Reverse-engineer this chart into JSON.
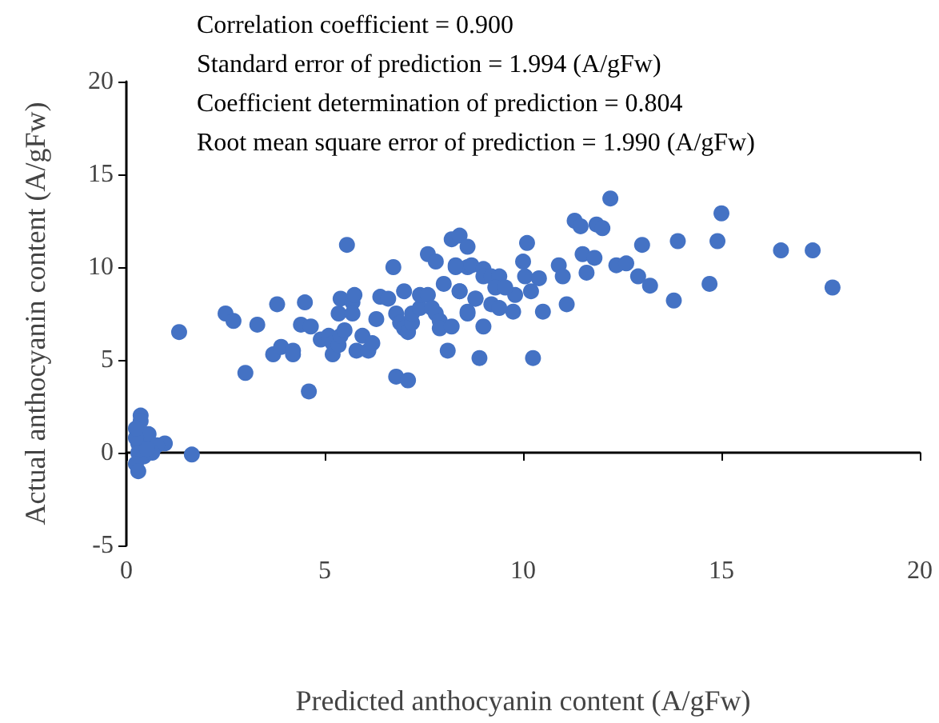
{
  "chart_data": {
    "type": "scatter",
    "xlabel": "Predicted anthocyanin content (A/gFw)",
    "ylabel": "Actual anthocyanin content (A/gFw)",
    "annotations": [
      "Correlation coefficient = 0.900",
      "Standard error of prediction = 1.994 (A/gFw)",
      "Coefficient determination of prediction = 0.804",
      "Root mean square error of prediction = 1.990 (A/gFw)"
    ],
    "xlim": [
      0,
      20
    ],
    "xticks": [
      0,
      5,
      10,
      15,
      20
    ],
    "ylim": [
      -5,
      20
    ],
    "yticks": [
      -5,
      0,
      5,
      10,
      15,
      20
    ],
    "marker": "circle",
    "series": [
      {
        "color": "#4472c4",
        "x": [
          5.56,
          6.73,
          7.6,
          7.8,
          8.2,
          8.4,
          8.6,
          8.3,
          8.6,
          1.33,
          2.5,
          2.7,
          3.3,
          3.8,
          4.5,
          3.0,
          4.6,
          3.7,
          3.9,
          4.2,
          4.2,
          4.4,
          4.65,
          4.9,
          5.1,
          5.2,
          5.2,
          5.35,
          5.4,
          5.5,
          5.35,
          5.4,
          5.7,
          5.75,
          5.7,
          5.95,
          5.8,
          6.1,
          6.2,
          6.3,
          6.4,
          6.6,
          6.8,
          7.0,
          6.9,
          7.0,
          7.1,
          7.2,
          7.2,
          7.4,
          7.4,
          7.6,
          7.7,
          7.8,
          7.9,
          7.9,
          8.2,
          8.1,
          8.0,
          8.4,
          8.6,
          6.8,
          7.1,
          8.8,
          12.2,
          15.0,
          11.3,
          11.45,
          11.85,
          12.0,
          10.1,
          13.0,
          13.9,
          14.9,
          16.5,
          17.3,
          17.8,
          14.7,
          13.8,
          13.2,
          12.9,
          12.35,
          12.6,
          11.5,
          11.8,
          11.6,
          10.9,
          11.0,
          10.0,
          10.05,
          10.4,
          10.2,
          9.8,
          9.75,
          10.5,
          11.1,
          10.25,
          8.9,
          9.0,
          8.6,
          8.8,
          8.3,
          8.7,
          9.0,
          9.0,
          9.2,
          9.4,
          9.3,
          9.55,
          8.4,
          9.2,
          9.4,
          0.36,
          0.36,
          0.56,
          0.97,
          0.77,
          1.65,
          0.3,
          0.3,
          0.44,
          0.65,
          0.24,
          0.3,
          0.24,
          0.52,
          0.24
        ],
        "values": [
          11.2,
          10.0,
          10.7,
          10.3,
          11.5,
          11.7,
          11.1,
          10.0,
          10.0,
          6.5,
          7.5,
          7.1,
          6.9,
          8.0,
          8.1,
          4.3,
          3.3,
          5.3,
          5.7,
          5.5,
          5.3,
          6.9,
          6.8,
          6.1,
          6.3,
          5.9,
          5.3,
          5.8,
          6.3,
          6.6,
          7.5,
          8.3,
          8.1,
          8.5,
          7.5,
          6.3,
          5.5,
          5.5,
          5.9,
          7.2,
          8.4,
          8.3,
          7.5,
          8.7,
          7.0,
          6.7,
          6.5,
          7.0,
          7.5,
          7.8,
          8.5,
          8.5,
          7.8,
          7.5,
          7.1,
          6.7,
          6.8,
          5.5,
          9.1,
          8.7,
          7.5,
          4.1,
          3.9,
          8.3,
          13.7,
          12.9,
          12.5,
          12.2,
          12.3,
          12.1,
          11.3,
          11.2,
          11.4,
          11.4,
          10.9,
          10.9,
          8.9,
          9.1,
          8.2,
          9.0,
          9.5,
          10.1,
          10.2,
          10.7,
          10.5,
          9.7,
          10.1,
          9.5,
          10.3,
          9.5,
          9.4,
          8.7,
          8.5,
          7.6,
          7.6,
          8.0,
          5.1,
          5.1,
          6.8,
          7.6,
          8.3,
          10.1,
          10.1,
          9.9,
          9.5,
          9.5,
          9.5,
          8.9,
          8.9,
          8.7,
          8.0,
          7.8,
          2.0,
          1.7,
          1.0,
          0.5,
          0.4,
          -0.1,
          0.5,
          0,
          -0.2,
          0,
          -0.6,
          -1.0,
          0.8,
          0.2,
          1.3
        ]
      }
    ]
  }
}
